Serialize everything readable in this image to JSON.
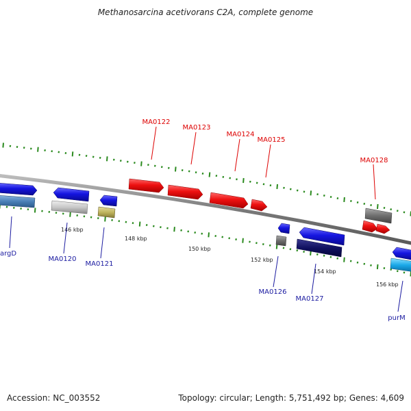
{
  "title": "Methanosarcina acetivorans C2A, complete genome",
  "footer": {
    "accession": "Accession: NC_003552",
    "summary": "Topology: circular; Length: 5,751,492 bp; Genes: 4,609"
  },
  "colors": {
    "backbone": "#8a8a8a",
    "tick": "#2a8a1e",
    "upper_label": "#dd0000",
    "lower_label": "#1a1aa0"
  },
  "scale_labels": [
    "146 kbp",
    "148 kbp",
    "150 kbp",
    "152 kbp",
    "154 kbp",
    "156 kbp"
  ],
  "upper_genes": [
    {
      "name": "MA0122",
      "color": "#ee1111"
    },
    {
      "name": "MA0123",
      "color": "#ee1111"
    },
    {
      "name": "MA0124",
      "color": "#ee1111"
    },
    {
      "name": "MA0125",
      "color": "#ee1111"
    },
    {
      "name": "MA0128",
      "color": "#ee1111"
    }
  ],
  "lower_genes": [
    {
      "name": "argD",
      "color": "#1515e0"
    },
    {
      "name": "MA0120",
      "color": "#1515e0"
    },
    {
      "name": "MA0121",
      "color": "#1515e0"
    },
    {
      "name": "MA0126",
      "color": "#1515e0"
    },
    {
      "name": "MA0127",
      "color": "#1515e0"
    },
    {
      "name": "purM",
      "color": "#1aa8e8"
    }
  ]
}
